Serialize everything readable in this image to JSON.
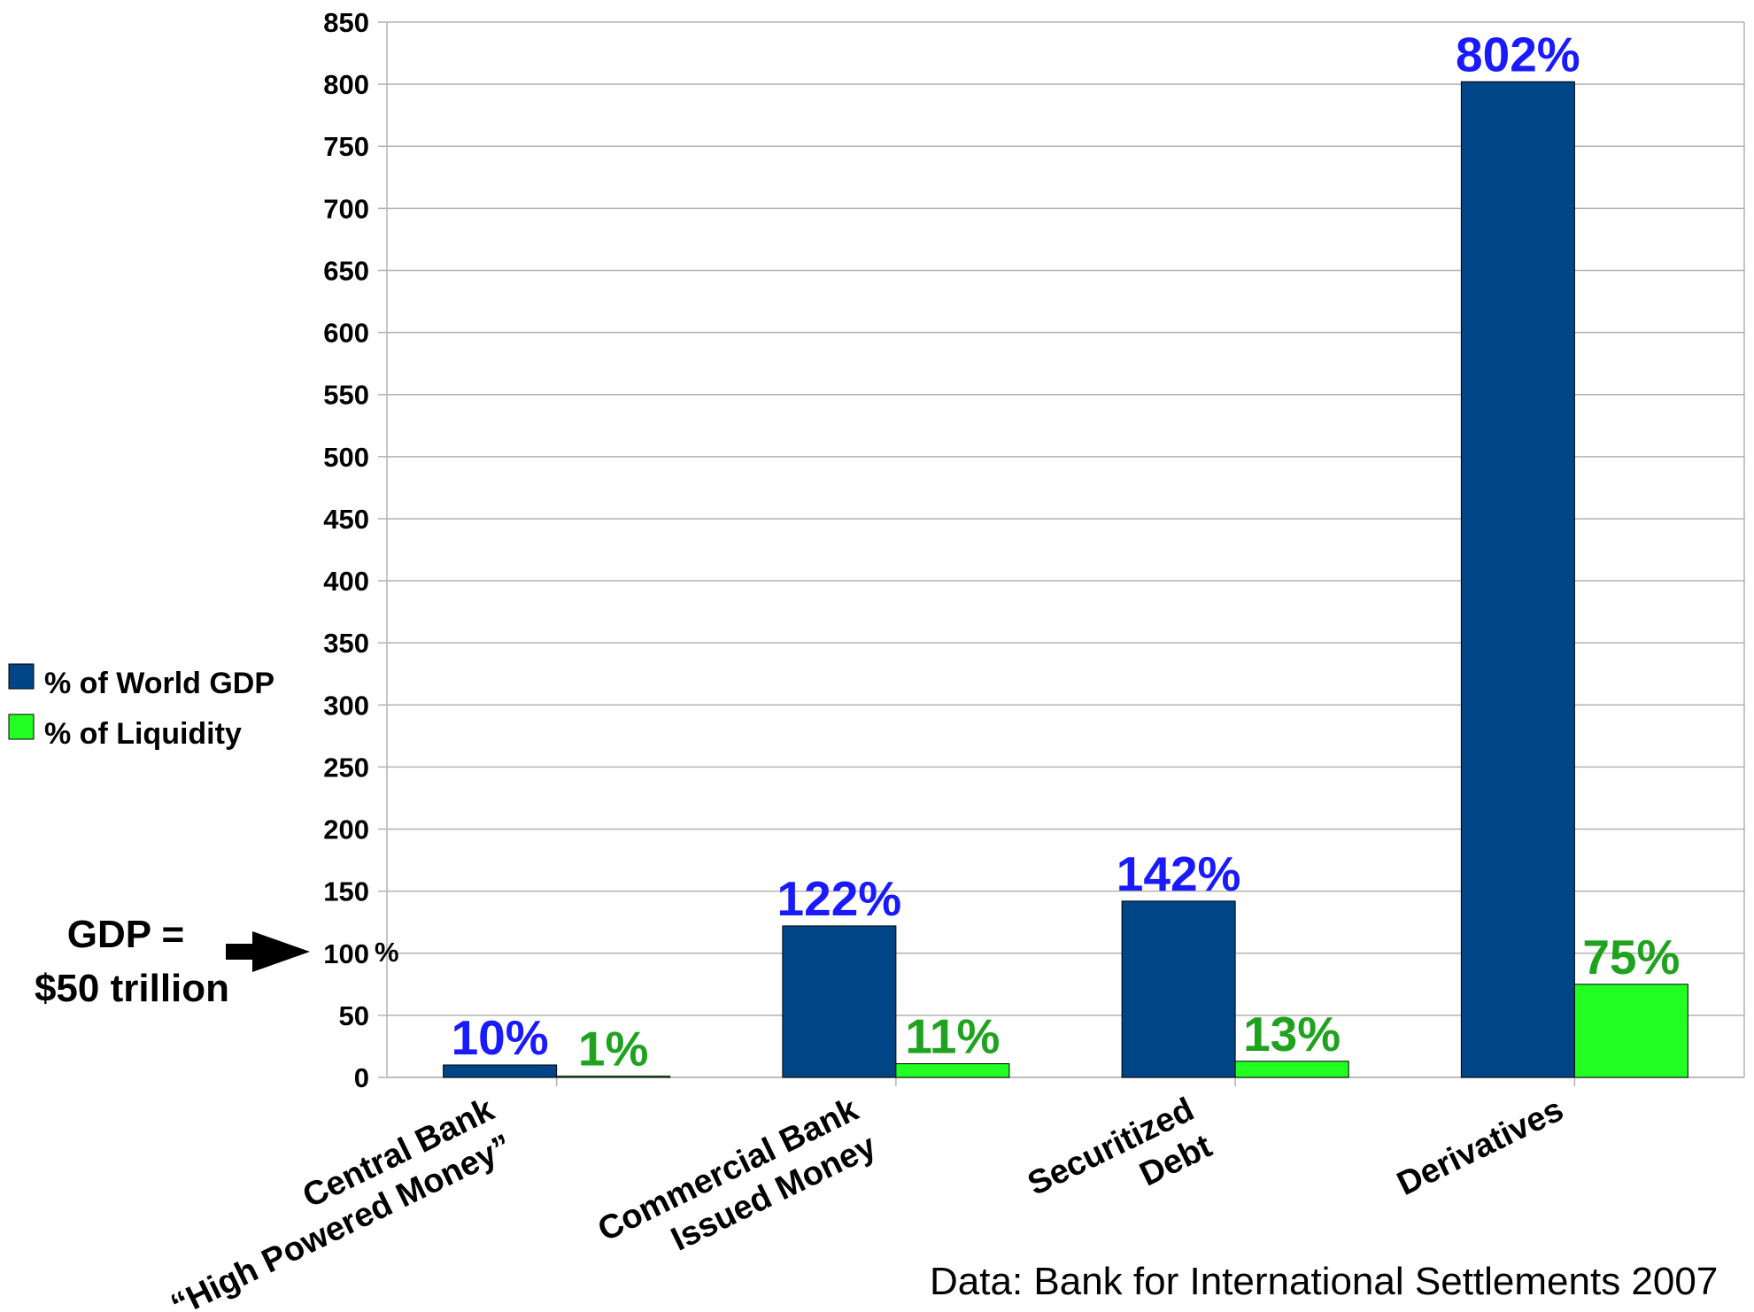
{
  "chart_data": {
    "type": "bar",
    "categories": [
      [
        "Central Bank",
        "“High Powered Money”"
      ],
      [
        "Commercial Bank",
        "Issued Money"
      ],
      [
        "Securitized",
        "Debt"
      ],
      [
        "Derivatives"
      ]
    ],
    "series": [
      {
        "name": "% of World GDP",
        "values": [
          10,
          122,
          142,
          802
        ],
        "labels": [
          "10%",
          "122%",
          "142%",
          "802%"
        ],
        "color": "#004586",
        "label_color": "#1a1aff"
      },
      {
        "name": "% of Liquidity",
        "values": [
          1,
          11,
          13,
          75
        ],
        "labels": [
          "1%",
          "11%",
          "13%",
          "75%"
        ],
        "color": "#23ff23",
        "label_color": "#1fa31f"
      }
    ],
    "ylim": [
      0,
      850
    ],
    "yticks": [
      0,
      50,
      100,
      150,
      200,
      250,
      300,
      350,
      400,
      450,
      500,
      550,
      600,
      650,
      700,
      750,
      800,
      850
    ],
    "grid": true,
    "legend_position": "left",
    "annotations": {
      "gdp_note": [
        "GDP =",
        "$50 trillion"
      ],
      "pct_suffix": "%",
      "source": "Data: Bank for International Settlements 2007"
    }
  }
}
